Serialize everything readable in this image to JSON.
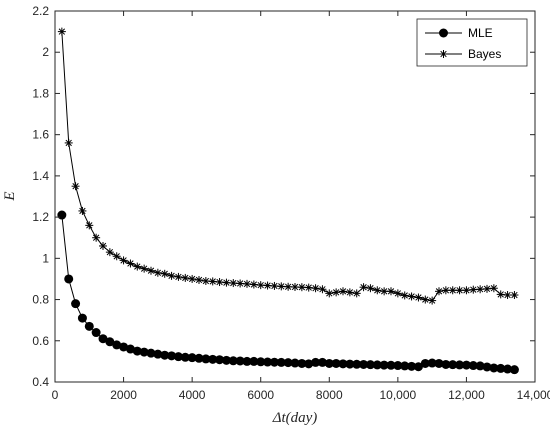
{
  "chart_data": {
    "type": "line",
    "xlabel": "Δt(day)",
    "ylabel": "E",
    "xlim": [
      0,
      14000
    ],
    "ylim": [
      0.4,
      2.2
    ],
    "xticks": [
      0,
      2000,
      4000,
      6000,
      8000,
      10000,
      12000,
      14000
    ],
    "xtick_labels": [
      "0",
      "2000",
      "4000",
      "6000",
      "8000",
      "10,000",
      "12,000",
      "14,000"
    ],
    "yticks": [
      0.4,
      0.6,
      0.8,
      1.0,
      1.2,
      1.4,
      1.6,
      1.8,
      2.0,
      2.2
    ],
    "ytick_labels": [
      "0.4",
      "0.6",
      "0.8",
      "1",
      "1.2",
      "1.4",
      "1.6",
      "1.8",
      "2",
      "2.2"
    ],
    "grid": false,
    "legend_position": "top-right",
    "series": [
      {
        "name": "MLE",
        "marker": "filled-circle",
        "color": "#000000",
        "x": [
          200,
          400,
          600,
          800,
          1000,
          1200,
          1400,
          1600,
          1800,
          2000,
          2200,
          2400,
          2600,
          2800,
          3000,
          3200,
          3400,
          3600,
          3800,
          4000,
          4200,
          4400,
          4600,
          4800,
          5000,
          5200,
          5400,
          5600,
          5800,
          6000,
          6200,
          6400,
          6600,
          6800,
          7000,
          7200,
          7400,
          7600,
          7800,
          8000,
          8200,
          8400,
          8600,
          8800,
          9000,
          9200,
          9400,
          9600,
          9800,
          10000,
          10200,
          10400,
          10600,
          10800,
          11000,
          11200,
          11400,
          11600,
          11800,
          12000,
          12200,
          12400,
          12600,
          12800,
          13000,
          13200,
          13400
        ],
        "y": [
          1.21,
          0.9,
          0.78,
          0.71,
          0.67,
          0.64,
          0.61,
          0.595,
          0.58,
          0.57,
          0.56,
          0.55,
          0.545,
          0.54,
          0.535,
          0.53,
          0.527,
          0.523,
          0.52,
          0.518,
          0.515,
          0.512,
          0.51,
          0.508,
          0.505,
          0.503,
          0.502,
          0.5,
          0.5,
          0.498,
          0.497,
          0.496,
          0.495,
          0.494,
          0.492,
          0.49,
          0.488,
          0.495,
          0.495,
          0.49,
          0.49,
          0.488,
          0.487,
          0.486,
          0.485,
          0.484,
          0.483,
          0.482,
          0.481,
          0.48,
          0.478,
          0.476,
          0.474,
          0.49,
          0.492,
          0.49,
          0.485,
          0.484,
          0.483,
          0.482,
          0.48,
          0.478,
          0.473,
          0.468,
          0.466,
          0.463,
          0.46
        ]
      },
      {
        "name": "Bayes",
        "marker": "asterisk",
        "color": "#000000",
        "x": [
          200,
          400,
          600,
          800,
          1000,
          1200,
          1400,
          1600,
          1800,
          2000,
          2200,
          2400,
          2600,
          2800,
          3000,
          3200,
          3400,
          3600,
          3800,
          4000,
          4200,
          4400,
          4600,
          4800,
          5000,
          5200,
          5400,
          5600,
          5800,
          6000,
          6200,
          6400,
          6600,
          6800,
          7000,
          7200,
          7400,
          7600,
          7800,
          8000,
          8200,
          8400,
          8600,
          8800,
          9000,
          9200,
          9400,
          9600,
          9800,
          10000,
          10200,
          10400,
          10600,
          10800,
          11000,
          11200,
          11400,
          11600,
          11800,
          12000,
          12200,
          12400,
          12600,
          12800,
          13000,
          13200,
          13400
        ],
        "y": [
          2.1,
          1.56,
          1.35,
          1.23,
          1.16,
          1.1,
          1.06,
          1.03,
          1.01,
          0.99,
          0.975,
          0.96,
          0.95,
          0.94,
          0.93,
          0.925,
          0.915,
          0.91,
          0.905,
          0.9,
          0.895,
          0.89,
          0.888,
          0.885,
          0.882,
          0.88,
          0.878,
          0.876,
          0.873,
          0.87,
          0.868,
          0.866,
          0.864,
          0.862,
          0.861,
          0.86,
          0.858,
          0.855,
          0.85,
          0.83,
          0.835,
          0.84,
          0.835,
          0.83,
          0.86,
          0.855,
          0.845,
          0.84,
          0.84,
          0.83,
          0.82,
          0.815,
          0.81,
          0.8,
          0.795,
          0.84,
          0.845,
          0.845,
          0.845,
          0.845,
          0.848,
          0.85,
          0.852,
          0.855,
          0.825,
          0.822,
          0.822
        ]
      }
    ]
  }
}
